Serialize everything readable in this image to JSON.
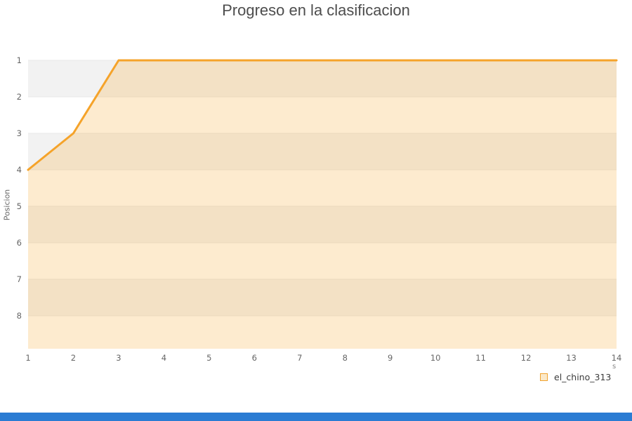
{
  "title": "Progreso en la clasificacion",
  "chart_data": {
    "type": "area",
    "x": [
      1,
      2,
      3,
      4,
      5,
      6,
      7,
      8,
      9,
      10,
      11,
      12,
      13,
      14
    ],
    "series": [
      {
        "name": "el_chino_313",
        "values": [
          4,
          3,
          1,
          1,
          1,
          1,
          1,
          1,
          1,
          1,
          1,
          1,
          1,
          1
        ]
      }
    ],
    "xlabel": "",
    "ylabel": "Posicion",
    "y_ticks": [
      1,
      2,
      3,
      4,
      5,
      6,
      7,
      8
    ],
    "ylim": [
      1,
      8.9
    ],
    "xlim": [
      1,
      14
    ],
    "y_inverted": true,
    "grid": true,
    "alternating_bands": true,
    "legend_position": "bottom-right",
    "line_color": "#f5a32a",
    "fill_color": "rgba(245,166,35,0.22)",
    "band_color": "#f2f2f2",
    "gridline_color": "#e8e8e8",
    "tick_color": "#666666"
  },
  "legend": {
    "label": "el_chino_313",
    "fragment": "s"
  },
  "colors": {
    "title": "#4d4d4d",
    "accent_line": "#f5a32a",
    "bottom_bar": "#2b7cd3"
  }
}
